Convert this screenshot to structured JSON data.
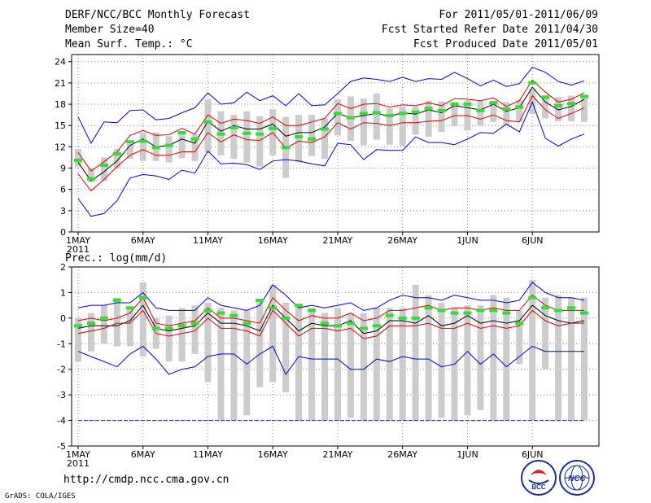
{
  "header": {
    "title": "DERF/NCC/BCC Monthly Forecast",
    "member_size": "Member Size=40",
    "variable": "Mean Surf. Temp.: °C",
    "period": "For 2011/05/01-2011/06/09",
    "refer_date": "Fcst Started Refer Date 2011/04/30",
    "produced_date": "Fcst Produced Date 2011/05/01"
  },
  "footer": {
    "url": "http://cmdp.ncc.cma.gov.cn",
    "grads": "GrADS: COLA/IGES",
    "logo_bcc": "BCC",
    "logo_ncc": "NCC"
  },
  "colors": {
    "envelope": "#0000dd",
    "spread": "#dd0000",
    "mean": "#000000",
    "box": "#cccccc",
    "mark": "#33dd33"
  },
  "chart_data": [
    {
      "type": "line",
      "title": "Mean Surf. Temp.: °C",
      "ylim": [
        0,
        25
      ],
      "yticks": [
        0,
        3,
        6,
        9,
        12,
        15,
        18,
        21,
        24
      ],
      "xlabels": [
        "1MAY",
        "6MAY",
        "11MAY",
        "16MAY",
        "21MAY",
        "26MAY",
        "1JUN",
        "6JUN"
      ],
      "xlabel_year": "2011",
      "days": 40,
      "series": [
        {
          "name": "max",
          "color_key": "envelope",
          "values": [
            16.2,
            12.5,
            15.5,
            15.4,
            17.1,
            17.2,
            15.8,
            16.0,
            16.8,
            17.5,
            19.6,
            18.0,
            18.2,
            19.7,
            18.5,
            19.2,
            17.8,
            19.5,
            17.8,
            17.9,
            19.5,
            21.2,
            21.7,
            21.5,
            21.2,
            21.8,
            21.2,
            21.6,
            21.5,
            22.5,
            21.6,
            20.6,
            21.4,
            20.5,
            20.9,
            23.2,
            22.5,
            21.2,
            20.7,
            21.3
          ]
        },
        {
          "name": "upper",
          "color_key": "spread",
          "values": [
            11.2,
            8.6,
            9.9,
            11.3,
            13.6,
            14.3,
            13.6,
            13.7,
            14.6,
            13.8,
            16.5,
            15.3,
            15.9,
            15.7,
            15.3,
            16.2,
            15.0,
            15.0,
            15.5,
            16.0,
            18.1,
            17.4,
            18.0,
            18.1,
            17.6,
            17.9,
            17.8,
            18.2,
            17.8,
            18.8,
            18.7,
            18.5,
            18.9,
            17.7,
            18.5,
            21.4,
            19.7,
            18.3,
            18.7,
            19.6
          ]
        },
        {
          "name": "mean",
          "color_key": "mean",
          "values": [
            9.8,
            7.2,
            8.5,
            10.0,
            12.2,
            13.1,
            12.0,
            12.2,
            13.1,
            12.5,
            15.6,
            14.2,
            15.0,
            14.5,
            14.5,
            15.2,
            13.5,
            14.0,
            14.0,
            14.8,
            16.7,
            16.1,
            16.4,
            16.7,
            16.3,
            16.8,
            16.6,
            17.2,
            16.8,
            17.8,
            17.5,
            17.2,
            18.0,
            17.0,
            17.5,
            20.4,
            18.3,
            17.2,
            17.7,
            18.7
          ]
        },
        {
          "name": "lower",
          "color_key": "spread",
          "values": [
            8.2,
            5.8,
            7.4,
            9.2,
            10.8,
            11.6,
            10.8,
            10.8,
            11.3,
            11.3,
            14.0,
            12.7,
            13.7,
            13.0,
            12.9,
            14.0,
            11.8,
            12.8,
            12.6,
            13.4,
            15.4,
            14.5,
            15.4,
            15.3,
            15.0,
            15.4,
            15.4,
            15.6,
            15.7,
            16.4,
            16.4,
            15.9,
            16.5,
            15.7,
            15.5,
            19.2,
            17.2,
            16.0,
            16.7,
            17.5
          ]
        },
        {
          "name": "min",
          "color_key": "envelope",
          "values": [
            4.7,
            2.2,
            2.6,
            4.4,
            7.6,
            8.1,
            7.9,
            7.4,
            8.7,
            8.3,
            11.4,
            9.6,
            9.7,
            9.5,
            8.8,
            10.0,
            10.2,
            10.0,
            9.6,
            9.3,
            12.5,
            12.3,
            10.2,
            11.6,
            11.5,
            11.5,
            13.4,
            12.6,
            12.6,
            12.3,
            13.1,
            14.0,
            13.9,
            15.2,
            14.1,
            18.3,
            13.2,
            12.1,
            13.1,
            13.8
          ]
        }
      ],
      "boxes_low": [
        9.2,
        7.0,
        7.2,
        9.0,
        10.3,
        10.0,
        10.0,
        9.8,
        10.4,
        10.0,
        11.2,
        10.8,
        10.3,
        9.8,
        9.2,
        10.8,
        7.6,
        9.8,
        10.7,
        10.3,
        13.6,
        12.8,
        12.2,
        13.0,
        12.3,
        12.1,
        13.7,
        13.4,
        14.1,
        14.9,
        14.3,
        15.0,
        15.5,
        15.0,
        15.5,
        16.6,
        16.0,
        15.6,
        15.6,
        15.5
      ],
      "boxes_high": [
        11.7,
        9.0,
        10.5,
        11.7,
        12.4,
        14.0,
        14.0,
        13.5,
        14.0,
        13.8,
        18.7,
        17.0,
        16.5,
        17.0,
        16.3,
        17.3,
        16.2,
        16.5,
        16.5,
        16.0,
        18.7,
        19.1,
        18.8,
        19.5,
        17.4,
        17.7,
        17.7,
        18.5,
        18.4,
        18.3,
        18.5,
        18.5,
        18.5,
        18.3,
        18.6,
        20.1,
        19.2,
        19.0,
        19.2,
        18.9
      ],
      "marks": [
        10.1,
        7.5,
        9.4,
        11.0,
        12.7,
        12.8,
        11.9,
        12.2,
        14.0,
        13.1,
        15.5,
        13.8,
        14.7,
        13.9,
        13.8,
        14.6,
        11.9,
        13.4,
        13.1,
        14.5,
        16.7,
        16.1,
        16.7,
        16.8,
        16.4,
        16.7,
        16.9,
        17.4,
        17.1,
        18.0,
        18.0,
        17.1,
        18.2,
        17.3,
        17.6,
        21.0,
        19.0,
        17.8,
        18.1,
        19.1
      ]
    },
    {
      "type": "line",
      "title": "Prec.: log(mm/d)",
      "ylim": [
        -5,
        2
      ],
      "yticks": [
        -5,
        -4,
        -3,
        -2,
        -1,
        0,
        1,
        2
      ],
      "xlabels": [
        "1MAY",
        "6MAY",
        "11MAY",
        "16MAY",
        "21MAY",
        "26MAY",
        "1JUN",
        "6JUN"
      ],
      "xlabel_year": "2011",
      "days": 40,
      "series": [
        {
          "name": "max",
          "color_key": "envelope",
          "values": [
            0.4,
            0.5,
            0.5,
            0.6,
            0.6,
            1.0,
            0.4,
            0.3,
            0.3,
            0.3,
            0.8,
            0.5,
            0.4,
            0.3,
            0.5,
            1.3,
            0.9,
            0.4,
            0.5,
            0.4,
            0.5,
            0.6,
            0.3,
            0.4,
            0.7,
            0.9,
            0.8,
            0.8,
            0.7,
            0.9,
            0.8,
            0.7,
            0.7,
            0.6,
            0.7,
            1.4,
            1.0,
            0.8,
            0.8,
            0.7
          ]
        },
        {
          "name": "upper",
          "color_key": "spread",
          "values": [
            -0.1,
            0.0,
            -0.1,
            0.0,
            0.2,
            0.8,
            -0.2,
            -0.3,
            -0.2,
            -0.1,
            0.4,
            0.0,
            0.0,
            -0.1,
            -0.2,
            0.8,
            0.3,
            -0.1,
            0.1,
            0.0,
            0.0,
            0.2,
            -0.1,
            0.0,
            0.3,
            0.3,
            0.4,
            0.5,
            0.3,
            0.4,
            0.4,
            0.3,
            0.4,
            0.3,
            0.3,
            0.9,
            0.5,
            0.3,
            0.3,
            0.3
          ]
        },
        {
          "name": "mean",
          "color_key": "mean",
          "values": [
            -0.4,
            -0.3,
            -0.3,
            -0.3,
            -0.1,
            0.5,
            -0.4,
            -0.5,
            -0.4,
            -0.3,
            0.2,
            -0.2,
            -0.2,
            -0.3,
            -0.5,
            0.5,
            0.0,
            -0.5,
            -0.2,
            -0.3,
            -0.3,
            -0.1,
            -0.6,
            -0.5,
            -0.1,
            -0.1,
            -0.2,
            0.1,
            -0.3,
            -0.2,
            0.1,
            -0.2,
            -0.1,
            -0.2,
            -0.1,
            0.5,
            0.1,
            -0.1,
            -0.2,
            -0.1
          ]
        },
        {
          "name": "lower",
          "color_key": "spread",
          "values": [
            -0.6,
            -0.5,
            -0.4,
            -0.2,
            -0.2,
            0.3,
            -0.6,
            -0.7,
            -0.6,
            -0.5,
            0.0,
            -0.4,
            -0.4,
            -0.5,
            -0.7,
            0.3,
            -0.2,
            -0.7,
            -0.4,
            -0.4,
            -0.5,
            -0.4,
            -0.8,
            -0.7,
            -0.3,
            -0.3,
            -0.3,
            -0.2,
            -0.4,
            -0.4,
            -0.2,
            -0.4,
            -0.3,
            -0.4,
            -0.3,
            0.3,
            -0.1,
            -0.3,
            -0.2,
            -0.2
          ]
        },
        {
          "name": "min",
          "color_key": "envelope",
          "values": [
            -1.3,
            -1.5,
            -1.7,
            -1.9,
            -1.4,
            -1.1,
            -1.6,
            -2.2,
            -2.0,
            -1.9,
            -1.5,
            -1.4,
            -1.4,
            -1.8,
            -1.4,
            -1.1,
            -2.2,
            -1.5,
            -1.6,
            -1.6,
            -1.6,
            -2.0,
            -2.0,
            -1.6,
            -1.7,
            -1.5,
            -1.6,
            -1.6,
            -1.9,
            -1.8,
            -1.3,
            -1.8,
            -1.4,
            -1.9,
            -1.5,
            -1.1,
            -1.3,
            -1.3,
            -1.3,
            -1.3
          ]
        }
      ],
      "floor": -4,
      "boxes_low": [
        -1.7,
        -1.3,
        -1.0,
        -1.1,
        -1.1,
        -1.5,
        -1.2,
        -1.7,
        -1.7,
        -1.4,
        -2.5,
        -4.0,
        -4.0,
        -3.8,
        -2.7,
        -2.5,
        -2.9,
        -4.0,
        -4.0,
        -4.0,
        -4.0,
        -3.9,
        -4.0,
        -4.0,
        -4.0,
        -4.0,
        -4.0,
        -4.0,
        -3.9,
        -4.0,
        -3.8,
        -3.6,
        -4.0,
        -4.0,
        -1.8,
        -4.0,
        -2.0,
        -4.0,
        -4.0,
        -4.0
      ],
      "boxes_high": [
        0.0,
        0.2,
        0.5,
        0.8,
        0.4,
        1.4,
        0.0,
        0.1,
        0.4,
        0.5,
        0.6,
        0.4,
        0.3,
        0.3,
        0.7,
        1.3,
        0.6,
        0.5,
        0.4,
        0.2,
        0.4,
        0.2,
        0.2,
        0.4,
        0.4,
        0.4,
        1.3,
        0.9,
        0.6,
        0.4,
        0.5,
        0.5,
        0.9,
        0.8,
        0.3,
        1.5,
        0.8,
        0.9,
        0.8,
        0.8
      ],
      "marks": [
        -0.3,
        -0.2,
        0.0,
        0.7,
        0.4,
        0.8,
        -0.4,
        -0.4,
        -0.3,
        -0.2,
        0.3,
        0.2,
        0.1,
        -0.2,
        0.7,
        0.4,
        0.0,
        0.5,
        0.3,
        -0.2,
        -0.3,
        -0.2,
        -0.4,
        -0.3,
        0.1,
        0.0,
        0.0,
        0.4,
        0.3,
        0.2,
        0.2,
        0.3,
        0.3,
        0.2,
        -0.2,
        0.8,
        0.4,
        0.3,
        0.4,
        0.2
      ]
    }
  ]
}
